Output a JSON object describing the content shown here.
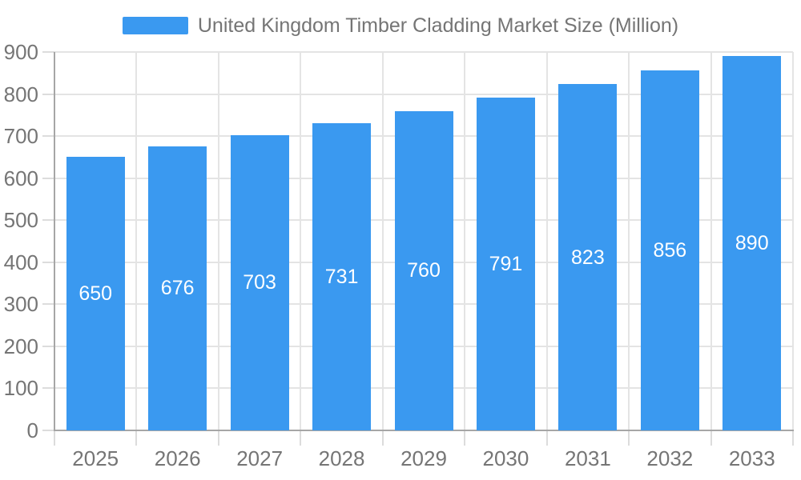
{
  "legend": {
    "label": "United Kingdom Timber Cladding Market Size (Million)"
  },
  "chart_data": {
    "type": "bar",
    "title": "United Kingdom Timber Cladding Market Size (Million)",
    "categories": [
      "2025",
      "2026",
      "2027",
      "2028",
      "2029",
      "2030",
      "2031",
      "2032",
      "2033"
    ],
    "series": [
      {
        "name": "United Kingdom Timber Cladding Market Size (Million)",
        "values": [
          650,
          676,
          703,
          731,
          760,
          791,
          823,
          856,
          890
        ]
      }
    ],
    "xlabel": "",
    "ylabel": "",
    "ylim": [
      0,
      900
    ],
    "yticks": [
      0,
      100,
      200,
      300,
      400,
      500,
      600,
      700,
      800,
      900
    ],
    "grid": true,
    "legend_position": "top",
    "value_label_position": "inside-center"
  },
  "colors": {
    "bar": "#3a99f0",
    "grid": "#e4e4e4",
    "tick": "#dcdcdc",
    "axis": "#a6a6a6",
    "label_text": "#757575",
    "value_text": "#ffffff",
    "background": "#ffffff"
  }
}
